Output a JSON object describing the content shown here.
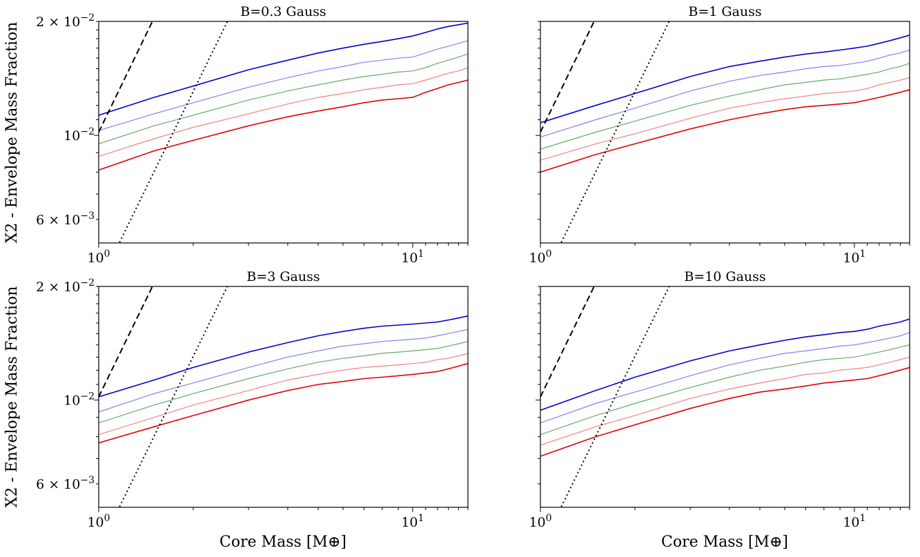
{
  "figure": {
    "ylabel": "X2 - Envelope Mass Fraction",
    "xlabel": "Core Mass [M⊕]"
  },
  "colors": {
    "c0": "#0000cc",
    "c1": "#8080ee",
    "c2": "#66aa66",
    "c3": "#f08080",
    "c4": "#e00000",
    "ref": "#000000"
  },
  "chart_data": [
    {
      "type": "line",
      "title": "B=0.3 Gauss",
      "xscale": "log",
      "yscale": "log",
      "xlim": [
        1,
        15
      ],
      "ylim": [
        0.0052,
        0.02
      ],
      "xticks": [
        "10^0",
        "10^1"
      ],
      "yticks": [
        "2 × 10^-2",
        "10^-2",
        "6 × 10^-3"
      ],
      "x": [
        1,
        1.5,
        2,
        3,
        4,
        5,
        6,
        7,
        8,
        9,
        10,
        11,
        12,
        13,
        14,
        15
      ],
      "series": [
        {
          "color": "c0",
          "values": [
            0.0113,
            0.0126,
            0.0135,
            0.0149,
            0.0158,
            0.0165,
            0.017,
            0.0174,
            0.0177,
            0.018,
            0.0183,
            0.0187,
            0.0191,
            0.0194,
            0.0196,
            0.0198
          ]
        },
        {
          "color": "c1",
          "values": [
            0.0103,
            0.0114,
            0.0122,
            0.0134,
            0.0142,
            0.0148,
            0.0152,
            0.0156,
            0.0158,
            0.016,
            0.0161,
            0.0165,
            0.0169,
            0.0172,
            0.0175,
            0.0178
          ]
        },
        {
          "color": "c2",
          "values": [
            0.0095,
            0.0106,
            0.0113,
            0.0124,
            0.0131,
            0.0136,
            0.014,
            0.0143,
            0.0145,
            0.0147,
            0.0148,
            0.0151,
            0.0155,
            0.0158,
            0.0161,
            0.0164
          ]
        },
        {
          "color": "c3",
          "values": [
            0.0088,
            0.0098,
            0.0105,
            0.0114,
            0.0121,
            0.0126,
            0.0129,
            0.0132,
            0.0134,
            0.0136,
            0.0137,
            0.014,
            0.0143,
            0.0146,
            0.0148,
            0.0151
          ]
        },
        {
          "color": "c4",
          "values": [
            0.0081,
            0.0091,
            0.0097,
            0.0106,
            0.0112,
            0.0116,
            0.0119,
            0.0122,
            0.0124,
            0.0125,
            0.0126,
            0.013,
            0.0133,
            0.0136,
            0.0138,
            0.014
          ]
        }
      ],
      "reference_lines": [
        {
          "style": "dashed",
          "x": [
            1,
            1.5
          ],
          "values": [
            0.0102,
            0.0204
          ]
        },
        {
          "style": "dotted",
          "x": [
            1.15,
            2.6
          ],
          "values": [
            0.0051,
            0.0204
          ]
        }
      ]
    },
    {
      "type": "line",
      "title": "B=1 Gauss",
      "xscale": "log",
      "yscale": "log",
      "xlim": [
        1,
        15
      ],
      "ylim": [
        0.0052,
        0.02
      ],
      "xticks": [
        "10^0",
        "10^1"
      ],
      "yticks": [],
      "x": [
        1,
        1.5,
        2,
        3,
        4,
        5,
        6,
        7,
        8,
        9,
        10,
        11,
        12,
        13,
        14,
        15
      ],
      "series": [
        {
          "color": "c0",
          "values": [
            0.0108,
            0.012,
            0.0129,
            0.0143,
            0.0152,
            0.0157,
            0.0161,
            0.0164,
            0.0166,
            0.0168,
            0.017,
            0.0172,
            0.0175,
            0.0178,
            0.0181,
            0.0184
          ]
        },
        {
          "color": "c1",
          "values": [
            0.0099,
            0.011,
            0.0118,
            0.0131,
            0.0139,
            0.0144,
            0.0147,
            0.015,
            0.0152,
            0.0153,
            0.0155,
            0.0157,
            0.016,
            0.0163,
            0.0165,
            0.0168
          ]
        },
        {
          "color": "c2",
          "values": [
            0.0092,
            0.0102,
            0.0109,
            0.012,
            0.0127,
            0.0132,
            0.0136,
            0.0138,
            0.014,
            0.0141,
            0.0143,
            0.0145,
            0.0147,
            0.015,
            0.0152,
            0.0155
          ]
        },
        {
          "color": "c3",
          "values": [
            0.0086,
            0.0095,
            0.0101,
            0.0111,
            0.0118,
            0.0122,
            0.0125,
            0.0127,
            0.0129,
            0.013,
            0.0131,
            0.0133,
            0.0136,
            0.0138,
            0.014,
            0.0142
          ]
        },
        {
          "color": "c4",
          "values": [
            0.008,
            0.0089,
            0.0095,
            0.0104,
            0.011,
            0.0114,
            0.0117,
            0.0119,
            0.012,
            0.0121,
            0.0122,
            0.0124,
            0.0126,
            0.0128,
            0.013,
            0.0132
          ]
        }
      ],
      "reference_lines": [
        {
          "style": "dashed",
          "x": [
            1,
            1.5
          ],
          "values": [
            0.0102,
            0.0204
          ]
        },
        {
          "style": "dotted",
          "x": [
            1.15,
            2.6
          ],
          "values": [
            0.0051,
            0.0204
          ]
        }
      ]
    },
    {
      "type": "line",
      "title": "B=3 Gauss",
      "xscale": "log",
      "yscale": "log",
      "xlim": [
        1,
        15
      ],
      "ylim": [
        0.0052,
        0.02
      ],
      "xticks": [
        "10^0",
        "10^1"
      ],
      "yticks": [
        "2 × 10^-2",
        "10^-2",
        "6 × 10^-3"
      ],
      "x": [
        1,
        1.5,
        2,
        3,
        4,
        5,
        6,
        7,
        8,
        9,
        10,
        11,
        12,
        13,
        14,
        15
      ],
      "series": [
        {
          "color": "c0",
          "values": [
            0.0102,
            0.0113,
            0.0122,
            0.0134,
            0.0142,
            0.0148,
            0.0152,
            0.0155,
            0.0157,
            0.0158,
            0.0159,
            0.016,
            0.0161,
            0.0163,
            0.0165,
            0.0167
          ]
        },
        {
          "color": "c1",
          "values": [
            0.0093,
            0.0104,
            0.0111,
            0.0122,
            0.013,
            0.0135,
            0.0139,
            0.0141,
            0.0143,
            0.0144,
            0.0145,
            0.0146,
            0.0148,
            0.015,
            0.0152,
            0.0154
          ]
        },
        {
          "color": "c2",
          "values": [
            0.0087,
            0.0097,
            0.0104,
            0.0114,
            0.0121,
            0.0126,
            0.0129,
            0.0131,
            0.0133,
            0.0134,
            0.0135,
            0.0136,
            0.0137,
            0.0139,
            0.0141,
            0.0143
          ]
        },
        {
          "color": "c3",
          "values": [
            0.0081,
            0.009,
            0.0097,
            0.0106,
            0.0113,
            0.0117,
            0.012,
            0.0122,
            0.0123,
            0.0124,
            0.0125,
            0.0126,
            0.0128,
            0.0129,
            0.0131,
            0.0133
          ]
        },
        {
          "color": "c4",
          "values": [
            0.0077,
            0.0085,
            0.0091,
            0.01,
            0.0106,
            0.011,
            0.0112,
            0.0114,
            0.0115,
            0.0116,
            0.0117,
            0.0118,
            0.0119,
            0.0121,
            0.0123,
            0.0125
          ]
        }
      ],
      "reference_lines": [
        {
          "style": "dashed",
          "x": [
            1,
            1.5
          ],
          "values": [
            0.0102,
            0.0204
          ]
        },
        {
          "style": "dotted",
          "x": [
            1.15,
            2.6
          ],
          "values": [
            0.0051,
            0.0204
          ]
        }
      ]
    },
    {
      "type": "line",
      "title": "B=10 Gauss",
      "xscale": "log",
      "yscale": "log",
      "xlim": [
        1,
        15
      ],
      "ylim": [
        0.0052,
        0.02
      ],
      "xticks": [
        "10^0",
        "10^1"
      ],
      "yticks": [],
      "x": [
        1,
        1.5,
        2,
        3,
        4,
        5,
        6,
        7,
        8,
        9,
        10,
        11,
        12,
        13,
        14,
        15
      ],
      "series": [
        {
          "color": "c0",
          "values": [
            0.0094,
            0.0106,
            0.0115,
            0.0127,
            0.0135,
            0.014,
            0.0144,
            0.0147,
            0.0149,
            0.0151,
            0.0152,
            0.0154,
            0.0157,
            0.0159,
            0.0161,
            0.0164
          ]
        },
        {
          "color": "c1",
          "values": [
            0.0087,
            0.0098,
            0.0105,
            0.0116,
            0.0124,
            0.0129,
            0.0133,
            0.0135,
            0.0137,
            0.0139,
            0.014,
            0.0142,
            0.0144,
            0.0146,
            0.0148,
            0.0151
          ]
        },
        {
          "color": "c2",
          "values": [
            0.0081,
            0.0091,
            0.0098,
            0.0108,
            0.0115,
            0.012,
            0.0123,
            0.0126,
            0.0128,
            0.0129,
            0.013,
            0.0132,
            0.0134,
            0.0136,
            0.0138,
            0.014
          ]
        },
        {
          "color": "c3",
          "values": [
            0.0076,
            0.0085,
            0.0091,
            0.0101,
            0.0107,
            0.0111,
            0.0114,
            0.0117,
            0.0118,
            0.012,
            0.0121,
            0.0122,
            0.0124,
            0.0126,
            0.0128,
            0.013
          ]
        },
        {
          "color": "c4",
          "values": [
            0.0071,
            0.008,
            0.0086,
            0.0095,
            0.0101,
            0.0105,
            0.0107,
            0.0109,
            0.0111,
            0.0112,
            0.0113,
            0.0114,
            0.0116,
            0.0118,
            0.012,
            0.0122
          ]
        }
      ],
      "reference_lines": [
        {
          "style": "dashed",
          "x": [
            1,
            1.5
          ],
          "values": [
            0.0102,
            0.0204
          ]
        },
        {
          "style": "dotted",
          "x": [
            1.15,
            2.6
          ],
          "values": [
            0.0051,
            0.0204
          ]
        }
      ]
    }
  ]
}
